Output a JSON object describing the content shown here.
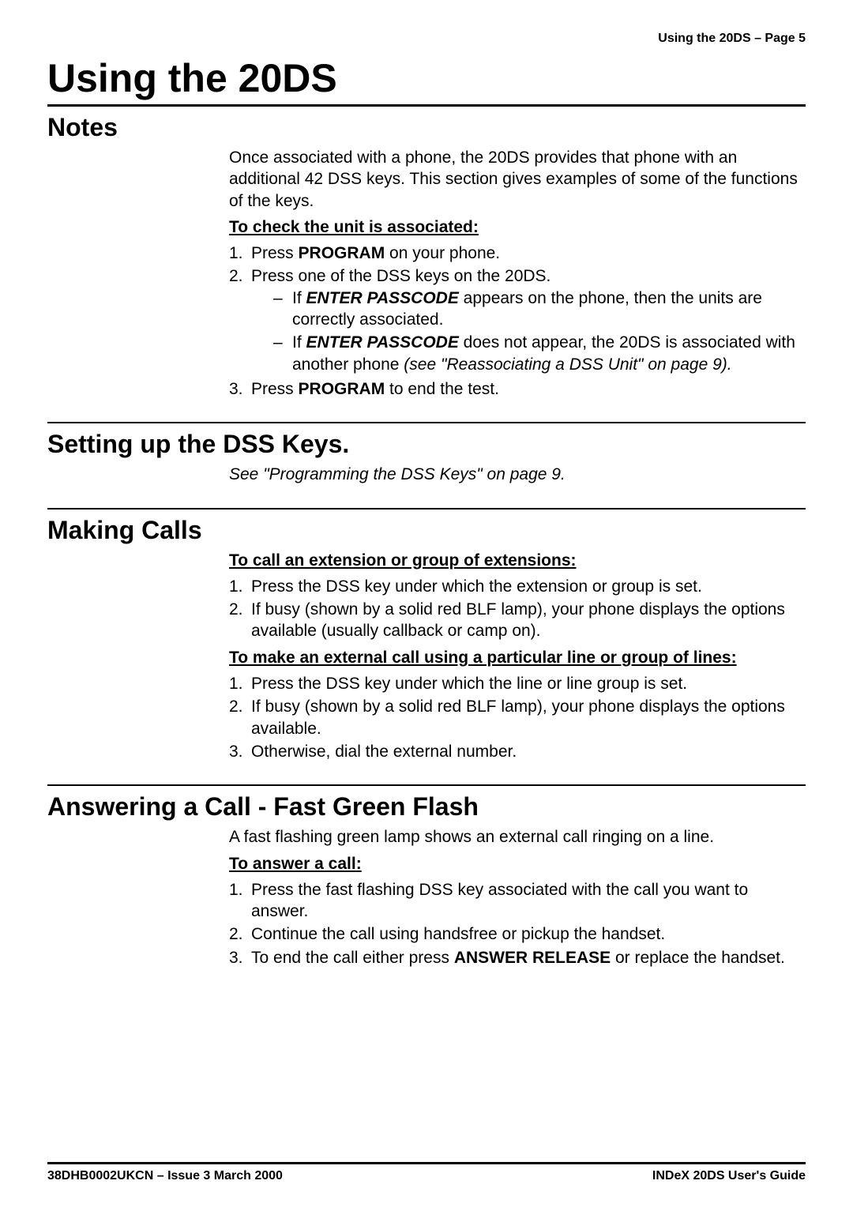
{
  "header": {
    "running": "Using the 20DS – Page 5"
  },
  "title": "Using the 20DS",
  "notes": {
    "heading": "Notes",
    "intro": "Once associated with a phone, the 20DS provides that phone with an additional 42 DSS keys. This section gives examples of some of the functions of the keys.",
    "sub1_underlined": "To check the unit is associated",
    "sub1_colon": ":",
    "step1_pre": "Press ",
    "step1_bold": "PROGRAM",
    "step1_post": " on your phone.",
    "step2": "Press one of the DSS keys on the 20DS.",
    "step2a_pre": "If ",
    "step2a_bold": "ENTER PASSCODE",
    "step2a_post": " appears on the phone, then the units are correctly associated.",
    "step2b_pre": "If ",
    "step2b_bold": "ENTER PASSCODE",
    "step2b_post1": " does not appear, the 20DS is associated with another phone ",
    "step2b_italic": "(see \"Reassociating a DSS Unit\" on page 9).",
    "step3_pre": "Press ",
    "step3_bold": "PROGRAM",
    "step3_post": " to end the test."
  },
  "setting": {
    "heading": "Setting up the DSS Keys.",
    "body_italic": "See \"Programming the DSS Keys\" on page 9."
  },
  "making": {
    "heading": "Making Calls",
    "sub1_underlined": "To call an extension or group of extensions",
    "sub1_colon": ":",
    "s1_step1": "Press the DSS key under which the extension or group is set.",
    "s1_step2": "If busy (shown by a solid red BLF lamp), your phone displays the options available (usually callback or camp on).",
    "sub2_underlined": "To make an external call using a particular line or group of lines",
    "sub2_colon": ":",
    "s2_step1": "Press the DSS key under which the line or line group is set.",
    "s2_step2": "If busy (shown by a solid red BLF lamp), your phone displays the options available.",
    "s2_step3": "Otherwise, dial the external number."
  },
  "answering": {
    "heading": "Answering a Call - Fast Green Flash",
    "intro": "A fast flashing green lamp shows an external call ringing on a line.",
    "sub1_underlined": "To answer a call",
    "sub1_colon": ":",
    "step1": "Press the fast flashing DSS key associated with the call you want to answer.",
    "step2": "Continue the call using handsfree or pickup the handset.",
    "step3_pre": "To end the call either press ",
    "step3_bold": "ANSWER RELEASE",
    "step3_post": " or replace the handset."
  },
  "footer": {
    "left": "38DHB0002UKCN – Issue 3 March 2000",
    "right": "INDeX  20DS User's Guide"
  }
}
